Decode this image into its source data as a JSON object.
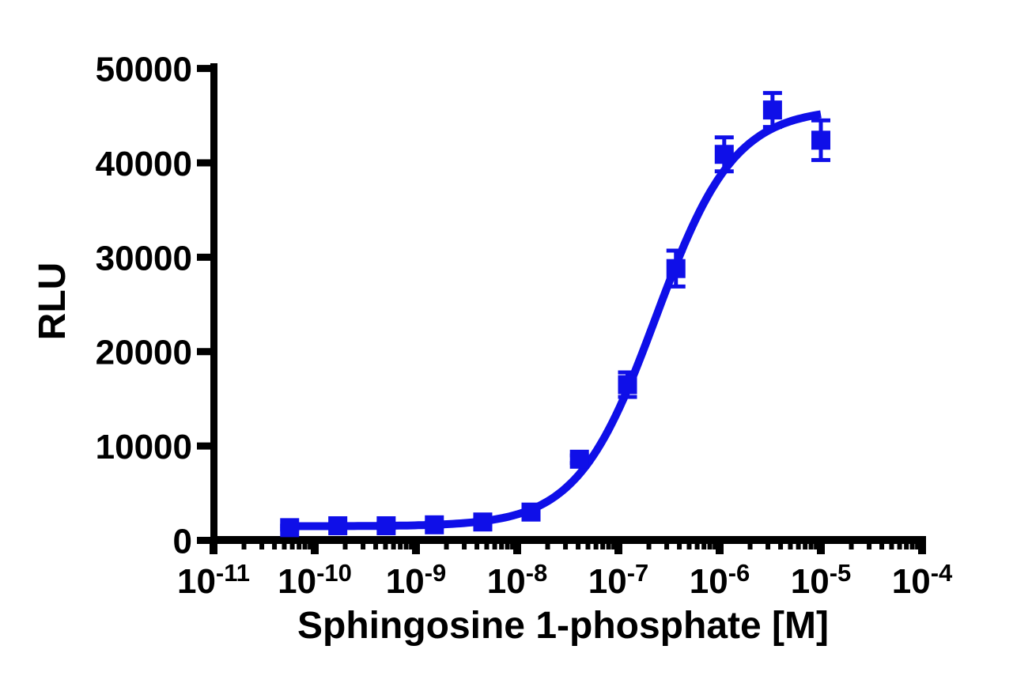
{
  "figure": {
    "background": "#ffffff"
  },
  "colors": {
    "series_blue": "#0f0fe8",
    "axis_black": "#000000"
  },
  "chart_data": {
    "type": "scatter",
    "title": "",
    "xlabel": "Sphingosine 1-phosphate [M]",
    "ylabel": "RLU",
    "x_scale": "log10",
    "xlim": [
      1e-11,
      0.0001
    ],
    "ylim": [
      0,
      50000
    ],
    "grid": false,
    "legend": "none",
    "x_tick_base": "10",
    "x_tick_exponents": [
      -11,
      -10,
      -9,
      -8,
      -7,
      -6,
      -5,
      -4
    ],
    "x_minor_ticks": "log-decade-2-through-9",
    "y_ticks": [
      0,
      10000,
      20000,
      30000,
      40000,
      50000
    ],
    "y_tick_labels": [
      "0",
      "10000",
      "20000",
      "30000",
      "40000",
      "50000"
    ],
    "series": [
      {
        "name": "Sphingosine 1-phosphate",
        "marker": "square",
        "color": "#0f0fe8",
        "error_bars": "sem-vertical-with-caps",
        "points": [
          {
            "x": 5.65e-11,
            "y": 1350,
            "err": 200
          },
          {
            "x": 1.69e-10,
            "y": 1550,
            "err": 200
          },
          {
            "x": 5.08e-10,
            "y": 1550,
            "err": 250
          },
          {
            "x": 1.52e-09,
            "y": 1650,
            "err": 250
          },
          {
            "x": 4.57e-09,
            "y": 1950,
            "err": 300
          },
          {
            "x": 1.37e-08,
            "y": 3000,
            "err": 300
          },
          {
            "x": 4.12e-08,
            "y": 8600,
            "err": 400
          },
          {
            "x": 1.23e-07,
            "y": 16500,
            "err": 1300
          },
          {
            "x": 3.7e-07,
            "y": 28800,
            "err": 1900
          },
          {
            "x": 1.11e-06,
            "y": 40900,
            "err": 1800
          },
          {
            "x": 3.33e-06,
            "y": 45600,
            "err": 1800
          },
          {
            "x": 1e-05,
            "y": 42400,
            "err": 2100
          }
        ]
      }
    ],
    "fit_curve": {
      "model": "four-parameter logistic (sigmoidal dose-response)",
      "bottom": 1500,
      "top": 45800,
      "log10_ec50": -6.63,
      "hill_slope": 1.12,
      "log10_x_range": [
        -10.25,
        -5.0
      ],
      "color": "#0f0fe8"
    }
  }
}
